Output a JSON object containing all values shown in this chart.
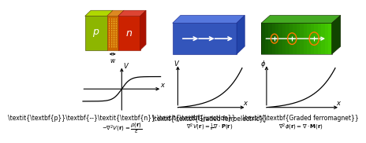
{
  "p_color_front": "#8db600",
  "p_color_top": "#b0d800",
  "n_color_front": "#cc2200",
  "n_color_top": "#dd4433",
  "n_color_right": "#aa1100",
  "dep_color_front": "#cc6600",
  "dep_color_top": "#dd8822",
  "fe_color_front": "#3355bb",
  "fe_color_top": "#5577dd",
  "fe_color_right": "#2244aa",
  "fm_color_front_left": "#115500",
  "fm_color_front_right": "#33aa00",
  "fm_color_top": "#44aa22",
  "fm_color_right": "#114400",
  "ellipse_color": "#ff7700",
  "panel1_title": "p–n junction",
  "panel1_formula": "$-\\nabla^2 V(\\mathbf{r})=\\frac{\\rho(\\mathbf{r})}{\\varepsilon}$",
  "panel2_title": "Graded ferroelectric",
  "panel2_formula": "$\\nabla^2 V(\\mathbf{r})=\\frac{1}{\\varepsilon}\\nabla\\cdot\\mathbf{P}(\\mathbf{r})$",
  "panel3_title": "Graded ferromagnet",
  "panel3_formula": "$\\nabla^2\\phi(\\mathbf{r})=\\nabla\\cdot\\mathbf{M}(\\mathbf{r})$"
}
